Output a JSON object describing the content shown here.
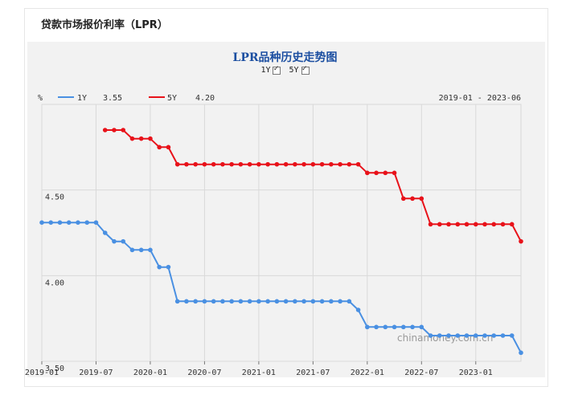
{
  "header": {
    "title": "贷款市场报价利率（LPR）"
  },
  "chart": {
    "title": "LPR品种历史走势图",
    "toggles": [
      {
        "label": "1Y",
        "checked": true
      },
      {
        "label": "5Y",
        "checked": true
      }
    ],
    "unit": "%",
    "legend": [
      {
        "name": "1Y",
        "latest": "3.55",
        "color": "#4a90e2"
      },
      {
        "name": "5Y",
        "latest": "4.20",
        "color": "#e8121a"
      }
    ],
    "range_label": "2019-01 - 2023-06",
    "watermark": "chinamoney.com.cn"
  },
  "chart_data": {
    "type": "line",
    "x": [
      "2019-01",
      "2019-02",
      "2019-03",
      "2019-04",
      "2019-05",
      "2019-06",
      "2019-07",
      "2019-08",
      "2019-09",
      "2019-10",
      "2019-11",
      "2019-12",
      "2020-01",
      "2020-02",
      "2020-03",
      "2020-04",
      "2020-05",
      "2020-06",
      "2020-07",
      "2020-08",
      "2020-09",
      "2020-10",
      "2020-11",
      "2020-12",
      "2021-01",
      "2021-02",
      "2021-03",
      "2021-04",
      "2021-05",
      "2021-06",
      "2021-07",
      "2021-08",
      "2021-09",
      "2021-10",
      "2021-11",
      "2021-12",
      "2022-01",
      "2022-02",
      "2022-03",
      "2022-04",
      "2022-05",
      "2022-06",
      "2022-07",
      "2022-08",
      "2022-09",
      "2022-10",
      "2022-11",
      "2022-12",
      "2023-01",
      "2023-02",
      "2023-03",
      "2023-04",
      "2023-05",
      "2023-06"
    ],
    "series": [
      {
        "name": "1Y",
        "color": "#4a90e2",
        "values": [
          4.31,
          4.31,
          4.31,
          4.31,
          4.31,
          4.31,
          4.31,
          4.25,
          4.2,
          4.2,
          4.15,
          4.15,
          4.15,
          4.05,
          4.05,
          3.85,
          3.85,
          3.85,
          3.85,
          3.85,
          3.85,
          3.85,
          3.85,
          3.85,
          3.85,
          3.85,
          3.85,
          3.85,
          3.85,
          3.85,
          3.85,
          3.85,
          3.85,
          3.85,
          3.85,
          3.8,
          3.7,
          3.7,
          3.7,
          3.7,
          3.7,
          3.7,
          3.7,
          3.65,
          3.65,
          3.65,
          3.65,
          3.65,
          3.65,
          3.65,
          3.65,
          3.65,
          3.65,
          3.55
        ]
      },
      {
        "name": "5Y",
        "color": "#e8121a",
        "values": [
          null,
          null,
          null,
          null,
          null,
          null,
          null,
          4.85,
          4.85,
          4.85,
          4.8,
          4.8,
          4.8,
          4.75,
          4.75,
          4.65,
          4.65,
          4.65,
          4.65,
          4.65,
          4.65,
          4.65,
          4.65,
          4.65,
          4.65,
          4.65,
          4.65,
          4.65,
          4.65,
          4.65,
          4.65,
          4.65,
          4.65,
          4.65,
          4.65,
          4.65,
          4.6,
          4.6,
          4.6,
          4.6,
          4.45,
          4.45,
          4.45,
          4.3,
          4.3,
          4.3,
          4.3,
          4.3,
          4.3,
          4.3,
          4.3,
          4.3,
          4.3,
          4.2
        ]
      }
    ],
    "y_ticks": [
      "3.50",
      "4.00",
      "4.50"
    ],
    "x_ticks": [
      "2019-01",
      "2019-07",
      "2020-01",
      "2020-07",
      "2021-01",
      "2021-07",
      "2022-01",
      "2022-07",
      "2023-01"
    ],
    "ylim": [
      3.5,
      5.0
    ],
    "grid": true
  }
}
